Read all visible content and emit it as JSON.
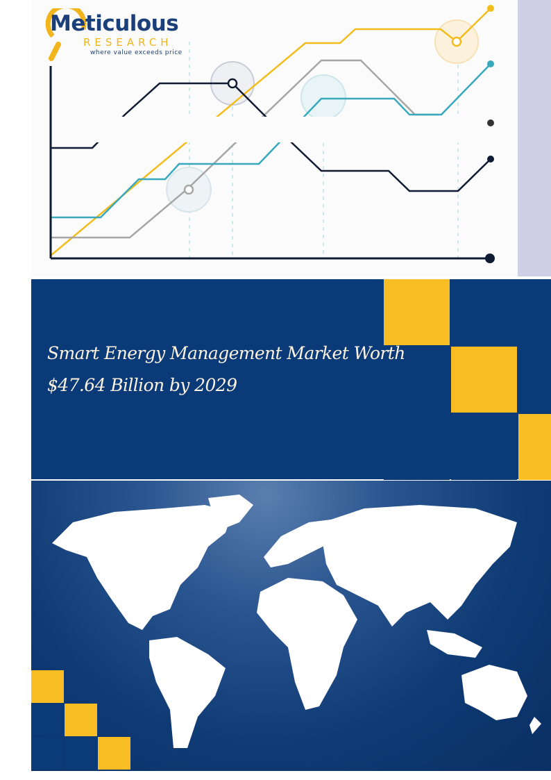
{
  "logo": {
    "name": "Meticulous",
    "sub": "RESEARCH",
    "tagline": "where value exceeds price"
  },
  "cover": {
    "title_line1": "Smart Energy Management Market Worth",
    "title_line2": "$47.64 Billion by 2029"
  },
  "colors": {
    "navy": "#0b3a78",
    "yellow": "#f7bd22",
    "lavender": "#cfd0e6",
    "teal": "#36a9bd",
    "gray": "#a6a6a6",
    "dark": "#0f1a33"
  }
}
